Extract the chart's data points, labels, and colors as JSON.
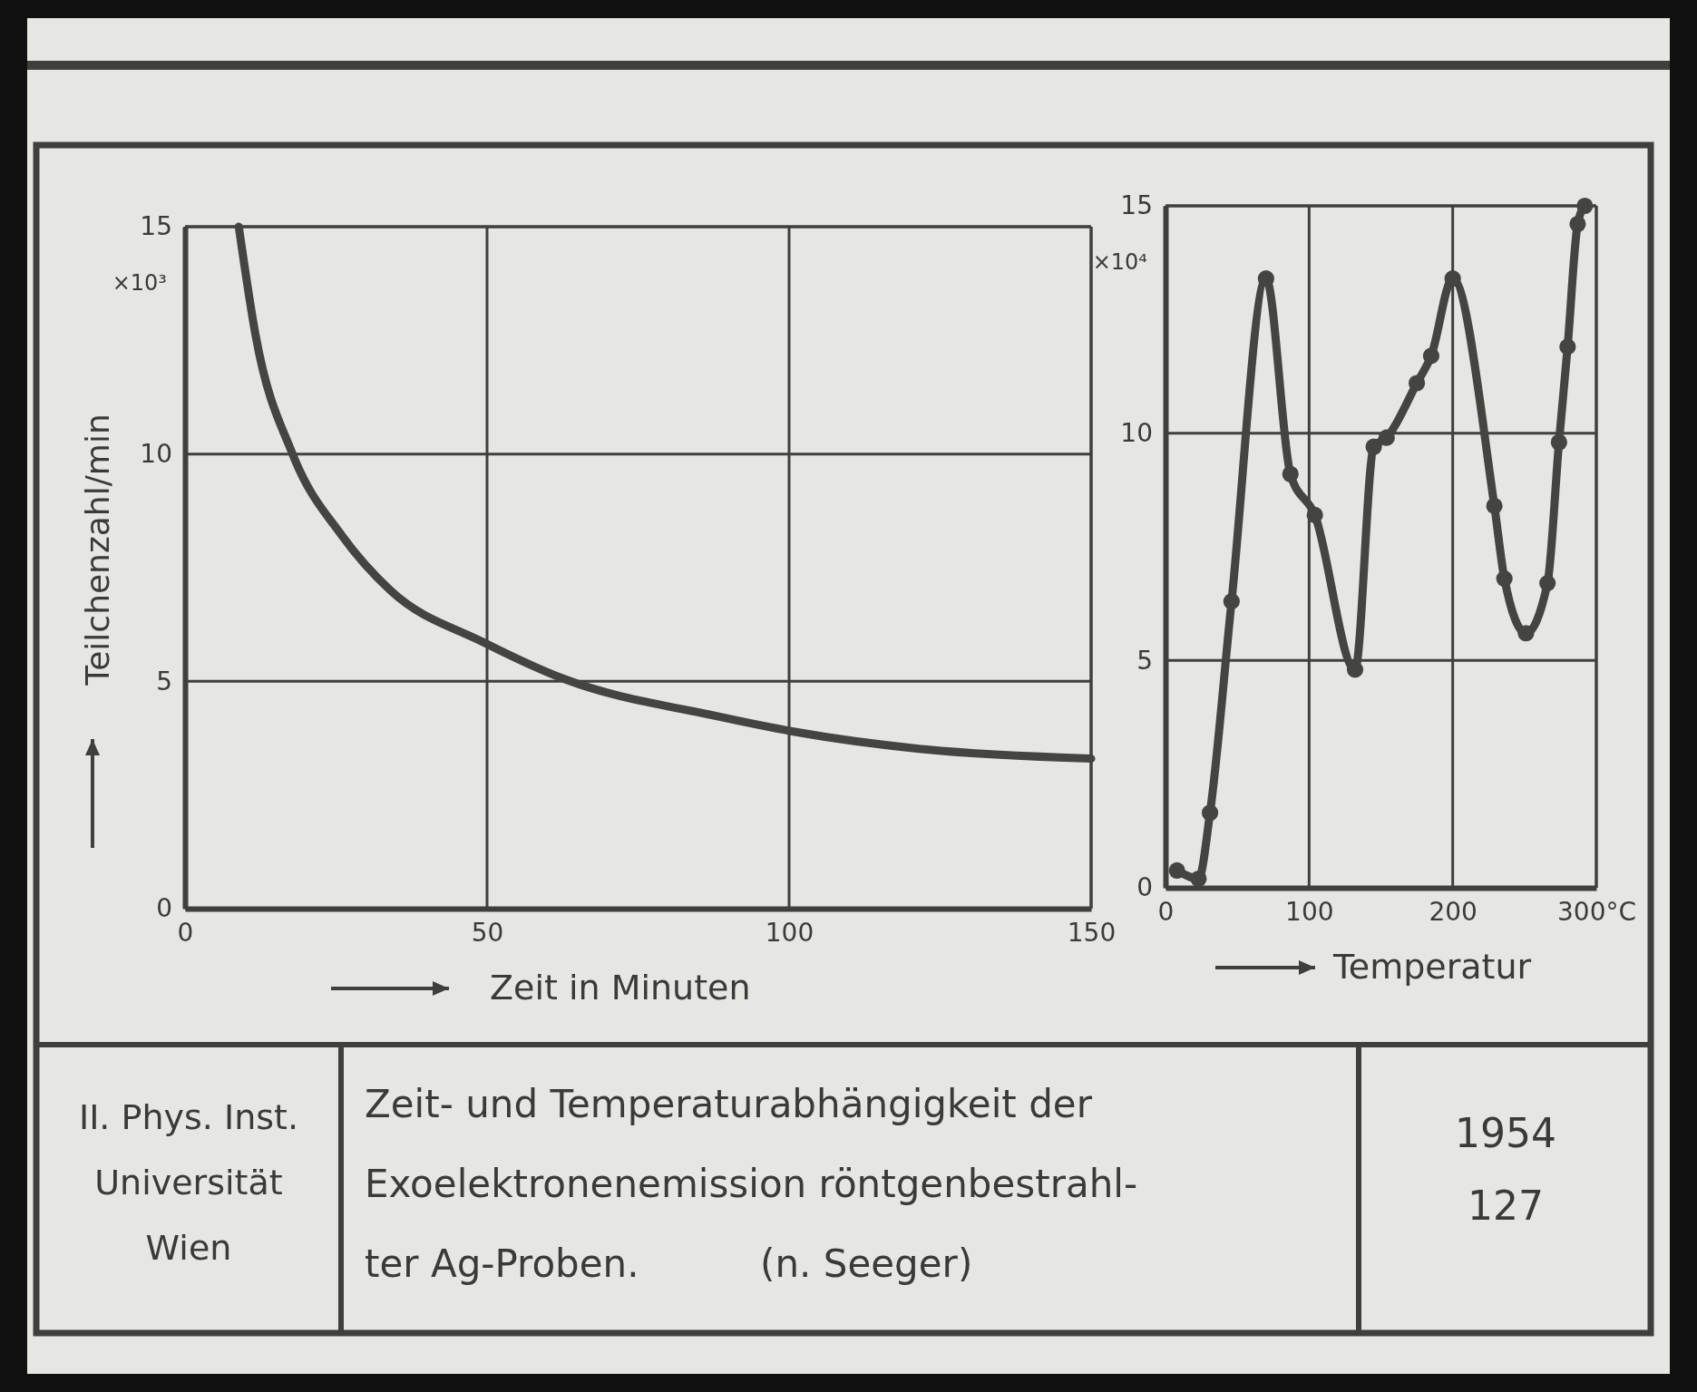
{
  "chart_data": [
    {
      "type": "line",
      "title": "Zeit- und Temperaturabhängigkeit der\nExoelektronenemission röntgenbestrahl-\nter Ag-Proben.          (n. Seeger)",
      "xlabel": "Zeit  in Minuten",
      "ylabel": "Teilchenzahl/min",
      "annotations": [
        "×10³",
        "II. Phys. Inst.\nUniversität\nWien",
        "1954",
        "127"
      ],
      "series": [
        {
          "color": "#444441",
          "x": [
            8.9,
            11.7,
            17.8,
            26,
            34,
            49.4,
            62.8,
            87.8,
            100.5,
            122.8,
            150
          ],
          "values": [
            15,
            12.6,
            10.0,
            8.2,
            7.0,
            5.86,
            5.05,
            4.24,
            3.9,
            3.5,
            3.3
          ]
        }
      ],
      "xlim": [
        0,
        150
      ],
      "xticks": [
        0,
        50,
        100,
        150
      ],
      "ylim": [
        0,
        15
      ],
      "yticks": [
        0,
        5,
        10,
        15
      ],
      "grid": true
    },
    {
      "type": "line",
      "xlabel": "Temperatur",
      "annotations": [
        "×10⁴"
      ],
      "series": [
        {
          "color": "#444441",
          "x": [
            8,
            23,
            31,
            46,
            70,
            87,
            104,
            132,
            145,
            154,
            175,
            185,
            200,
            229,
            236,
            251,
            266,
            274,
            280,
            287,
            292
          ],
          "values": [
            0.38,
            0.2,
            1.65,
            6.3,
            13.4,
            9.1,
            8.2,
            4.8,
            9.7,
            9.9,
            11.1,
            11.7,
            13.4,
            8.4,
            6.8,
            5.6,
            6.7,
            9.8,
            11.9,
            14.6,
            15
          ]
        }
      ],
      "xlim": [
        0,
        300
      ],
      "xticks": [
        0,
        100,
        200,
        {
          "value": 300,
          "label": "300°C"
        }
      ],
      "ylim": [
        0,
        15
      ],
      "yticks": [
        0,
        5,
        10,
        15
      ],
      "grid": true,
      "marker": "circle"
    }
  ]
}
